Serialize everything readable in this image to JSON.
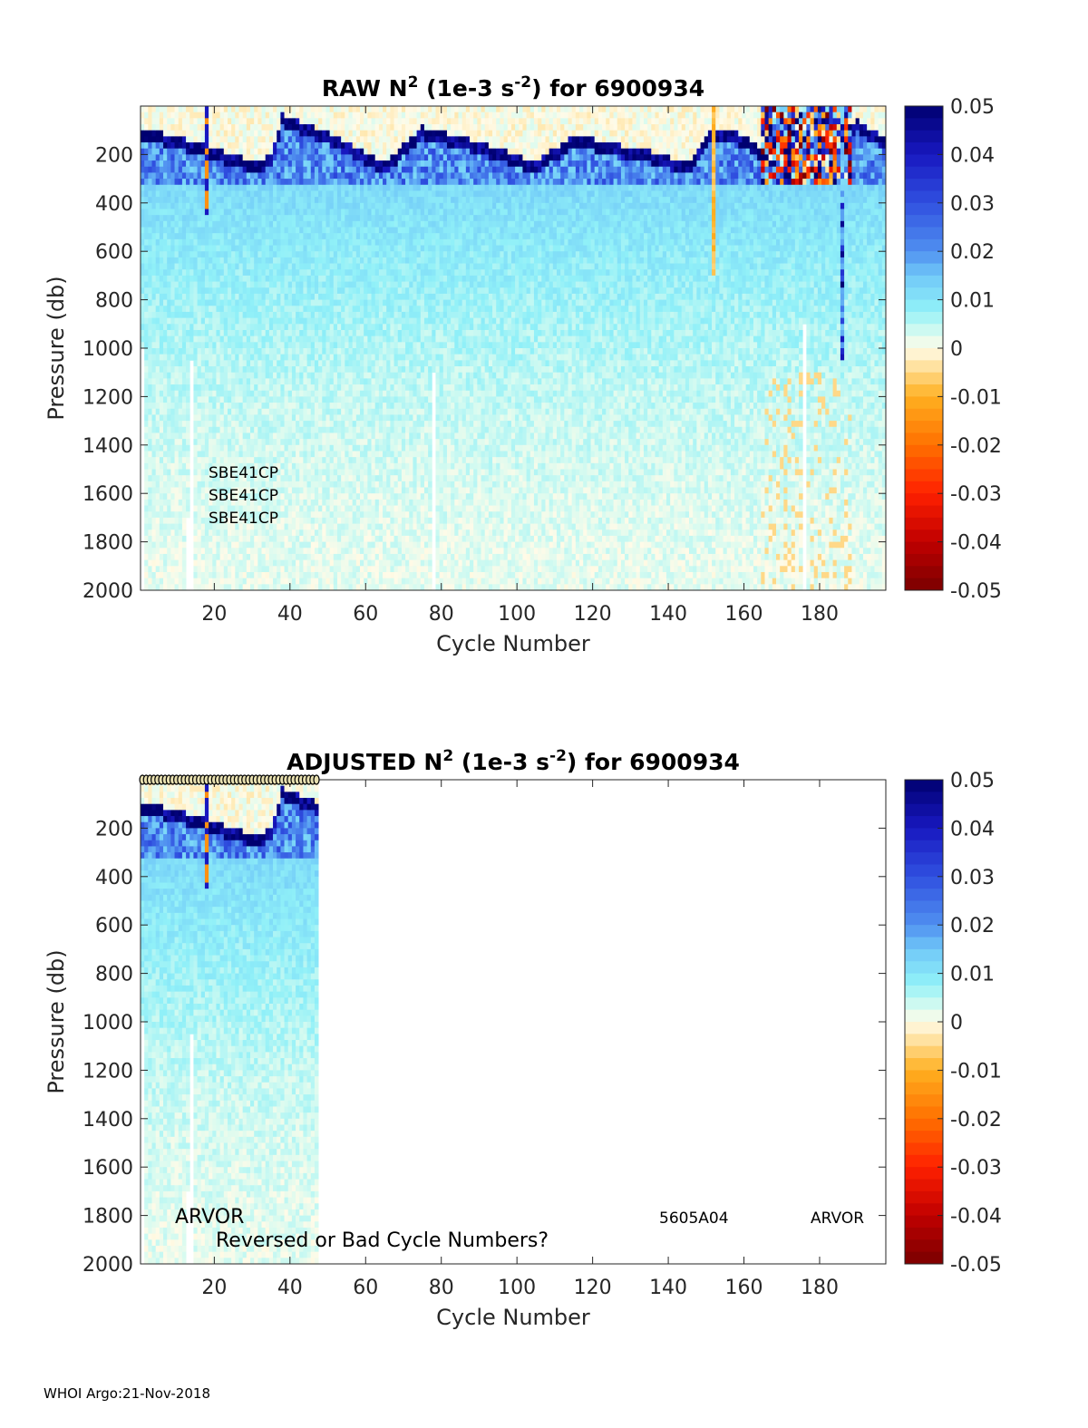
{
  "chart_data": [
    {
      "type": "heatmap",
      "title_prefix": "RAW N",
      "title_sup": "2",
      "title_mid": " (1e-3 s",
      "title_sup2": "-2",
      "title_suffix": ") for 6900934",
      "xlabel": "Cycle Number",
      "ylabel": "Pressure (db)",
      "xlim": [
        0.5,
        197.5
      ],
      "ylim": [
        0,
        2000
      ],
      "y_reversed": true,
      "xticks": [
        20,
        40,
        60,
        80,
        100,
        120,
        140,
        160,
        180
      ],
      "yticks": [
        200,
        400,
        600,
        800,
        1000,
        1200,
        1400,
        1600,
        1800,
        2000
      ],
      "colorbar": {
        "ticks": [
          "0.05",
          "0.04",
          "0.03",
          "0.02",
          "0.01",
          "0",
          "-0.01",
          "-0.02",
          "-0.03",
          "-0.04",
          "-0.05"
        ],
        "range": [
          -0.05,
          0.05
        ]
      },
      "cycles": [
        1,
        197
      ],
      "thermocline_pressure": [
        [
          1,
          120
        ],
        [
          10,
          150
        ],
        [
          20,
          200
        ],
        [
          30,
          250
        ],
        [
          35,
          230
        ],
        [
          38,
          60
        ],
        [
          45,
          100
        ],
        [
          55,
          170
        ],
        [
          65,
          260
        ],
        [
          75,
          110
        ],
        [
          85,
          150
        ],
        [
          95,
          200
        ],
        [
          105,
          260
        ],
        [
          115,
          140
        ],
        [
          125,
          180
        ],
        [
          135,
          210
        ],
        [
          145,
          260
        ],
        [
          152,
          110
        ],
        [
          158,
          130
        ],
        [
          165,
          200
        ],
        [
          175,
          200
        ],
        [
          185,
          150
        ],
        [
          190,
          80
        ],
        [
          197,
          160
        ]
      ],
      "missing_columns": [
        [
          1,
          1000,
          2000
        ],
        [
          13,
          1700,
          2000
        ],
        [
          14,
          1050,
          2000
        ],
        [
          78,
          1100,
          2000
        ],
        [
          176,
          900,
          2000
        ]
      ],
      "noisy_cycles": [
        165,
        188
      ],
      "annotations": [
        "SBE41CP",
        "SBE41CP",
        "SBE41CP"
      ]
    },
    {
      "type": "heatmap",
      "title_prefix": "ADJUSTED N",
      "title_sup": "2",
      "title_mid": " (1e-3 s",
      "title_sup2": "-2",
      "title_suffix": ") for 6900934",
      "xlabel": "Cycle Number",
      "ylabel": "Pressure (db)",
      "xlim": [
        0.5,
        197.5
      ],
      "ylim": [
        0,
        2000
      ],
      "y_reversed": true,
      "xticks": [
        20,
        40,
        60,
        80,
        100,
        120,
        140,
        160,
        180
      ],
      "yticks": [
        200,
        400,
        600,
        800,
        1000,
        1200,
        1400,
        1600,
        1800,
        2000
      ],
      "colorbar": {
        "ticks": [
          "0.05",
          "0.04",
          "0.03",
          "0.02",
          "0.01",
          "0",
          "-0.01",
          "-0.02",
          "-0.03",
          "-0.04",
          "-0.05"
        ],
        "range": [
          -0.05,
          0.05
        ]
      },
      "cycles": [
        1,
        47
      ],
      "marker_cycles_range": [
        1,
        47
      ],
      "annotations": {
        "left": "ARVOR",
        "warning": "Reversed or Bad Cycle Numbers?",
        "serial": "5605A04",
        "right": "ARVOR"
      }
    }
  ],
  "footer": "WHOI Argo:21-Nov-2018"
}
